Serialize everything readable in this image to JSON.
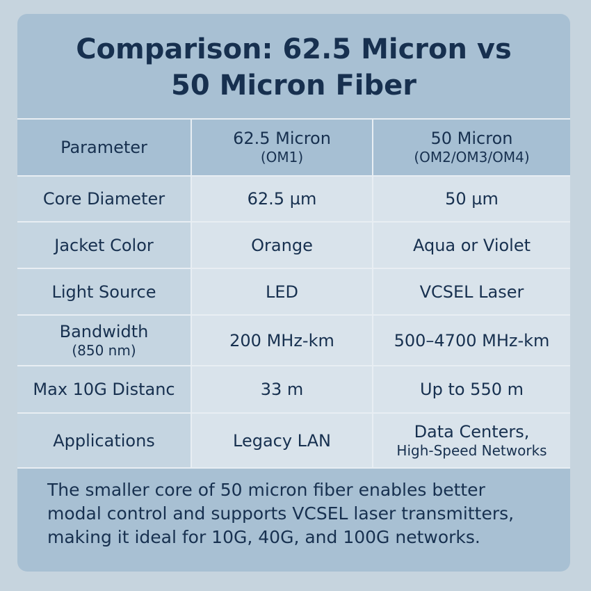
{
  "title": {
    "lines": [
      "Comparison: 62.5 Micron vs",
      "50 Micron Fiber"
    ]
  },
  "table": {
    "header": [
      [
        "Parameter"
      ],
      [
        "62.5 Micron",
        "(OM1)"
      ],
      [
        "50 Micron",
        "(OM2/OM3/OM4)"
      ]
    ],
    "rows": [
      [
        [
          "Core Diameter"
        ],
        [
          "62.5 µm"
        ],
        [
          "50 µm"
        ]
      ],
      [
        [
          "Jacket Color"
        ],
        [
          "Orange"
        ],
        [
          "Aqua or Violet"
        ]
      ],
      [
        [
          "Light Source"
        ],
        [
          "LED"
        ],
        [
          "VCSEL Laser"
        ]
      ],
      [
        [
          "Bandwidth",
          "(850 nm)"
        ],
        [
          "200 MHz-km"
        ],
        [
          "500–4700 MHz-km"
        ]
      ],
      [
        [
          "Max 10G Distanc"
        ],
        [
          "33 m"
        ],
        [
          "Up to 550 m"
        ]
      ],
      [
        [
          "Applications"
        ],
        [
          "Legacy LAN"
        ],
        [
          "Data Centers,",
          "High-Speed Networks"
        ]
      ]
    ]
  },
  "footer": {
    "lines": [
      "The smaller core of 50 micron fiber enables better",
      "modal control and supports VCSEL laser transmitters,",
      "making it ideal for 10G, 40G, and 100G networks."
    ]
  }
}
